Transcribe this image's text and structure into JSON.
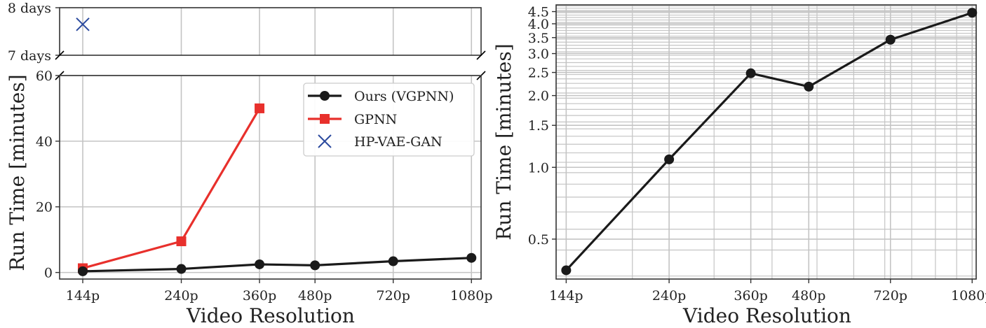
{
  "chart_data": [
    {
      "type": "line",
      "panel": "left",
      "xlabel": "Video Resolution",
      "ylabel": "Run Time [minutes]",
      "categories": [
        "144p",
        "240p",
        "360p",
        "480p",
        "720p",
        "1080p"
      ],
      "x_scale": "log",
      "x": [
        144,
        240,
        360,
        480,
        720,
        1080
      ],
      "ylim": [
        -2,
        60
      ],
      "yticks": [
        0,
        20,
        40,
        60
      ],
      "ytick_labels": [
        "0",
        "20",
        "40",
        "60"
      ],
      "broken_axis_top": {
        "ylim_days": [
          7,
          8
        ],
        "ytick_labels": [
          "7 days",
          "8 days"
        ]
      },
      "grid": true,
      "legend_position": "top-right",
      "series": [
        {
          "name": "Ours (VGPNN)",
          "color": "#1a1a1a",
          "marker": "circle",
          "x": [
            144,
            240,
            360,
            480,
            720,
            1080
          ],
          "values": [
            0.37,
            1.08,
            2.48,
            2.18,
            3.43,
            4.45
          ]
        },
        {
          "name": "GPNN",
          "color": "#e8302c",
          "marker": "square",
          "x": [
            144,
            240,
            360
          ],
          "values": [
            1.3,
            9.5,
            50
          ]
        },
        {
          "name": "HP-VAE-GAN",
          "color": "#2b4a9e",
          "marker": "x",
          "x": [
            144
          ],
          "values_days": [
            7.65
          ]
        }
      ]
    },
    {
      "type": "line",
      "panel": "right",
      "xlabel": "Video Resolution",
      "ylabel": "Run Time [minutes]",
      "categories": [
        "144p",
        "240p",
        "360p",
        "480p",
        "720p",
        "1080p"
      ],
      "x_scale": "log",
      "x": [
        144,
        240,
        360,
        480,
        720,
        1080
      ],
      "y_scale": "log",
      "ylim": [
        0.34,
        4.8
      ],
      "yticks": [
        0.5,
        1.0,
        1.5,
        2.0,
        2.5,
        3.0,
        3.5,
        4.0,
        4.5
      ],
      "ytick_labels": [
        "0.5",
        "1.0",
        "1.5",
        "2.0",
        "2.5",
        "3.0",
        "3.5",
        "4.0",
        "4.5"
      ],
      "grid": true,
      "series": [
        {
          "name": "Ours (VGPNN)",
          "color": "#1a1a1a",
          "marker": "circle",
          "x": [
            144,
            240,
            360,
            480,
            720,
            1080
          ],
          "values": [
            0.37,
            1.08,
            2.48,
            2.18,
            3.43,
            4.45
          ]
        }
      ]
    }
  ]
}
